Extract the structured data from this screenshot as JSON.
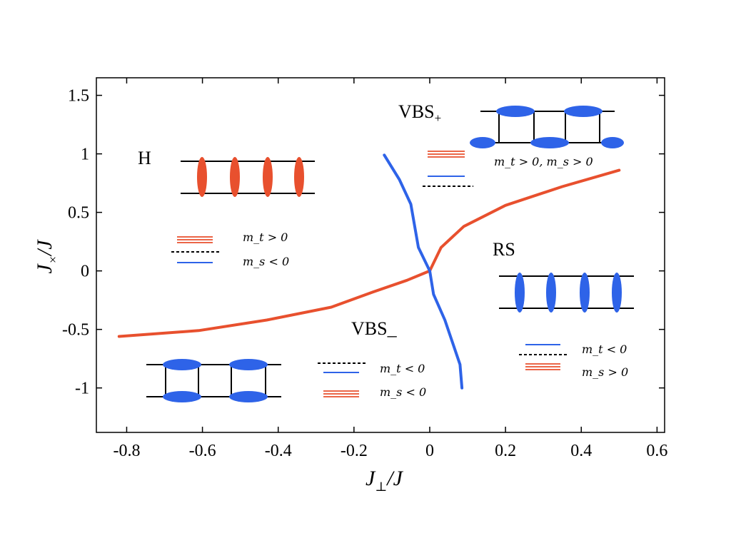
{
  "chart_data": {
    "type": "line",
    "xlabel": "J⊥/J",
    "ylabel": "J×/J",
    "xlim": [
      -0.88,
      0.62
    ],
    "ylim": [
      -1.38,
      1.65
    ],
    "x_ticks": [
      -0.8,
      -0.6,
      -0.4,
      -0.2,
      0,
      0.2,
      0.4,
      0.6
    ],
    "x_tick_labels": [
      "-0.8",
      "-0.6",
      "-0.4",
      "-0.2",
      "0",
      "0.2",
      "0.4",
      "0.6"
    ],
    "y_ticks": [
      -1,
      -0.5,
      0,
      0.5,
      1,
      1.5
    ],
    "y_tick_labels": [
      "-1",
      "-0.5",
      "0",
      "0.5",
      "1",
      "1.5"
    ],
    "grid": false,
    "series": [
      {
        "color": "#e8502e",
        "points": [
          [
            -0.82,
            -0.56
          ],
          [
            -0.61,
            -0.51
          ],
          [
            -0.43,
            -0.42
          ],
          [
            -0.26,
            -0.31
          ],
          [
            -0.15,
            -0.18
          ],
          [
            -0.06,
            -0.08
          ],
          [
            0,
            0
          ],
          [
            0.03,
            0.2
          ],
          [
            0.09,
            0.38
          ],
          [
            0.2,
            0.56
          ],
          [
            0.35,
            0.72
          ],
          [
            0.5,
            0.86
          ]
        ]
      },
      {
        "color": "#2e63e8",
        "points": [
          [
            -0.12,
            0.99
          ],
          [
            -0.08,
            0.78
          ],
          [
            -0.05,
            0.57
          ],
          [
            -0.03,
            0.2
          ],
          [
            0,
            0
          ],
          [
            0.01,
            -0.2
          ],
          [
            0.04,
            -0.42
          ],
          [
            0.08,
            -0.8
          ],
          [
            0.085,
            -1.0
          ]
        ]
      }
    ],
    "annotations": {
      "H": {
        "label": "H",
        "line1": "m_t > 0",
        "line2": "m_s < 0"
      },
      "VBS_plus": {
        "label": "VBS",
        "sub": "+",
        "line1": "m_t > 0, m_s > 0"
      },
      "VBS_minus": {
        "label": "VBS",
        "sub": "_",
        "line1": "m_t < 0",
        "line2": "m_s < 0"
      },
      "RS": {
        "label": "RS",
        "line1": "m_t < 0",
        "line2": "m_s > 0"
      }
    },
    "colors": {
      "orange": "#e8502e",
      "blue": "#2e63e8"
    }
  }
}
